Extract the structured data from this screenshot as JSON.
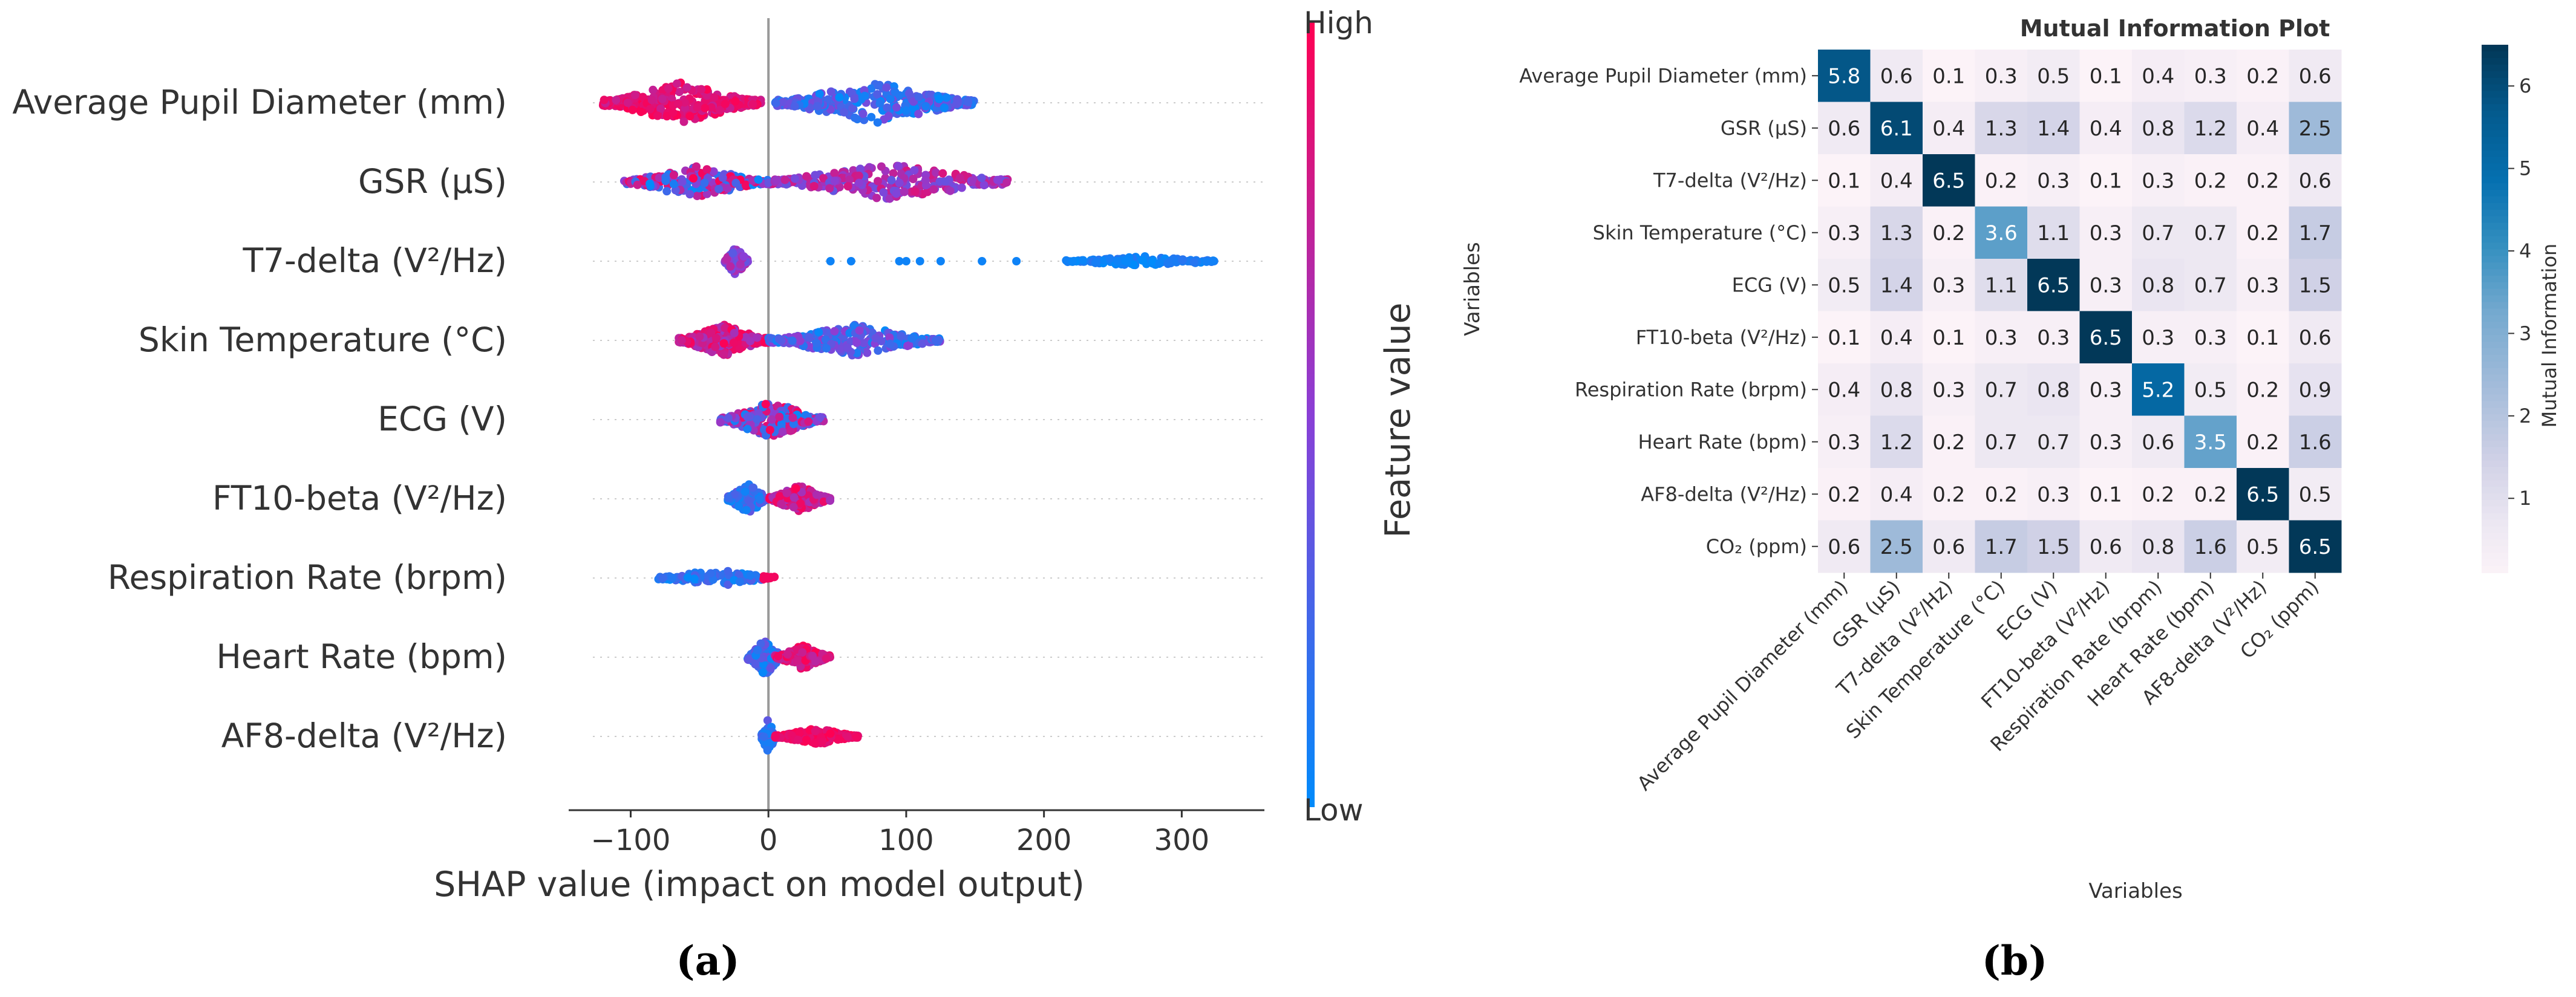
{
  "chart_data": [
    {
      "type": "scatter",
      "subtype": "shap_beeswarm",
      "panel_label": "(a)",
      "xlabel": "SHAP value (impact on model output)",
      "xticks": [
        -100,
        0,
        100,
        200,
        300
      ],
      "xlim": [
        -145,
        360
      ],
      "features": [
        {
          "name": "Average Pupil Diameter (mm)",
          "neg": [
            -120,
            -5
          ],
          "pos": [
            5,
            150
          ],
          "dens": 26,
          "note": "high values negative"
        },
        {
          "name": "GSR (μS)",
          "neg": [
            -105,
            0
          ],
          "pos": [
            0,
            175
          ],
          "dens": 20
        },
        {
          "name": "T7-delta (V²/Hz)",
          "cluster": [
            -30,
            -15
          ],
          "outliers": [
            45,
            60,
            95,
            100,
            110,
            125,
            155,
            180
          ],
          "pos": [
            215,
            330
          ]
        },
        {
          "name": "Skin Temperature (°C)",
          "neg": [
            -65,
            0
          ],
          "pos": [
            0,
            125
          ],
          "dens": 18
        },
        {
          "name": "ECG (V)",
          "range": [
            -35,
            40
          ]
        },
        {
          "name": "FT10-beta (V²/Hz)",
          "range": [
            -30,
            45
          ]
        },
        {
          "name": "Respiration Rate (brpm)",
          "range": [
            -80,
            5
          ]
        },
        {
          "name": "Heart Rate (bpm)",
          "range": [
            -15,
            45
          ]
        },
        {
          "name": "AF8-delta (V²/Hz)",
          "range": [
            -5,
            65
          ]
        }
      ],
      "colorbar": {
        "label": "Feature value",
        "high": "High",
        "low": "Low",
        "low_color": "#008bfb",
        "high_color": "#ff0052"
      }
    },
    {
      "type": "heatmap",
      "panel_label": "(b)",
      "title": "Mutual Information Plot",
      "xlabel": "Variables",
      "ylabel": "Variables",
      "labels": [
        "Average Pupil Diameter (mm)",
        "GSR (μS)",
        "T7-delta (V²/Hz)",
        "Skin Temperature (°C)",
        "ECG (V)",
        "FT10-beta (V²/Hz)",
        "Respiration Rate (brpm)",
        "Heart Rate (bpm)",
        "AF8-delta (V²/Hz)",
        "CO₂ (ppm)"
      ],
      "values": [
        [
          5.8,
          0.6,
          0.1,
          0.3,
          0.5,
          0.1,
          0.4,
          0.3,
          0.2,
          0.6
        ],
        [
          0.6,
          6.1,
          0.4,
          1.3,
          1.4,
          0.4,
          0.8,
          1.2,
          0.4,
          2.5
        ],
        [
          0.1,
          0.4,
          6.5,
          0.2,
          0.3,
          0.1,
          0.3,
          0.2,
          0.2,
          0.6
        ],
        [
          0.3,
          1.3,
          0.2,
          3.6,
          1.1,
          0.3,
          0.7,
          0.7,
          0.2,
          1.7
        ],
        [
          0.5,
          1.4,
          0.3,
          1.1,
          6.5,
          0.3,
          0.8,
          0.7,
          0.3,
          1.5
        ],
        [
          0.1,
          0.4,
          0.1,
          0.3,
          0.3,
          6.5,
          0.3,
          0.3,
          0.1,
          0.6
        ],
        [
          0.4,
          0.8,
          0.3,
          0.7,
          0.8,
          0.3,
          5.2,
          0.5,
          0.2,
          0.9
        ],
        [
          0.3,
          1.2,
          0.2,
          0.7,
          0.7,
          0.3,
          0.6,
          3.5,
          0.2,
          1.6
        ],
        [
          0.2,
          0.4,
          0.2,
          0.2,
          0.3,
          0.1,
          0.2,
          0.2,
          6.5,
          0.5
        ],
        [
          0.6,
          2.5,
          0.6,
          1.7,
          1.5,
          0.6,
          0.8,
          1.6,
          0.5,
          6.5
        ]
      ],
      "colorbar": {
        "label": "Mutual Information",
        "ticks": [
          1,
          2,
          3,
          4,
          5,
          6
        ],
        "range": [
          0.1,
          6.5
        ],
        "low_color": "#fcf3f8",
        "high_color": "#023858"
      }
    }
  ]
}
